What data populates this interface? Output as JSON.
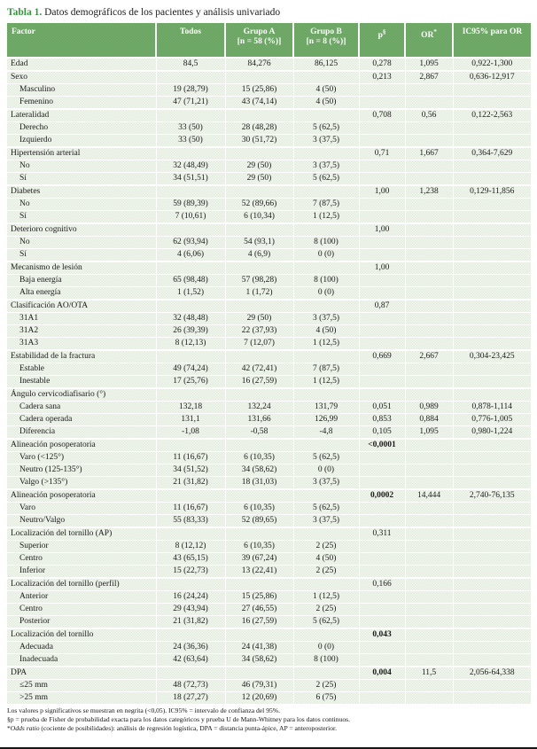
{
  "title": {
    "prefix": "Tabla 1.",
    "text": " Datos demográficos de los pacientes y análisis univariado"
  },
  "columns": {
    "factor": "Factor",
    "todos": "Todos",
    "grupo_a_line1": "Grupo A",
    "grupo_a_line2": "[n = 58 (%)]",
    "grupo_b_line1": "Grupo B",
    "grupo_b_line2": "[n = 8 (%)]",
    "p": "p",
    "p_sup": "§",
    "or": "OR",
    "or_sup": "*",
    "ic": "IC95% para OR"
  },
  "colors": {
    "header_green": "#6CA765",
    "title_green": "#35953b",
    "band_light": "#e2ebdd"
  },
  "rows": [
    {
      "f": "Edad",
      "i": 0,
      "t": "84,5",
      "a": "84,276",
      "b": "86,125",
      "p": "0,278",
      "or": "1,095",
      "ic": "0,922-1,300"
    },
    {
      "f": "Sexo",
      "i": 0,
      "p": "0,213",
      "or": "2,867",
      "ic": "0,636-12,917"
    },
    {
      "f": "Masculino",
      "i": 1,
      "t": "19 (28,79)",
      "a": "15 (25,86)",
      "b": "4 (50)"
    },
    {
      "f": "Femenino",
      "i": 1,
      "t": "47 (71,21)",
      "a": "43 (74,14)",
      "b": "4 (50)"
    },
    {
      "f": "Lateralidad",
      "i": 0,
      "p": "0,708",
      "or": "0,56",
      "ic": "0,122-2,563"
    },
    {
      "f": "Derecho",
      "i": 1,
      "t": "33 (50)",
      "a": "28 (48,28)",
      "b": "5 (62,5)"
    },
    {
      "f": "Izquierdo",
      "i": 1,
      "t": "33 (50)",
      "a": "30 (51,72)",
      "b": "3 (37,5)"
    },
    {
      "f": "Hipertensión arterial",
      "i": 0,
      "p": "0,71",
      "or": "1,667",
      "ic": "0,364-7,629"
    },
    {
      "f": "No",
      "i": 1,
      "t": "32 (48,49)",
      "a": "29 (50)",
      "b": "3 (37,5)"
    },
    {
      "f": "Sí",
      "i": 1,
      "t": "34 (51,51)",
      "a": "29 (50)",
      "b": "5 (62,5)"
    },
    {
      "f": "Diabetes",
      "i": 0,
      "p": "1,00",
      "or": "1,238",
      "ic": "0,129-11,856"
    },
    {
      "f": "No",
      "i": 1,
      "t": "59 (89,39)",
      "a": "52 (89,66)",
      "b": "7 (87,5)"
    },
    {
      "f": "Sí",
      "i": 1,
      "t": "7 (10,61)",
      "a": "6 (10,34)",
      "b": "1 (12,5)"
    },
    {
      "f": "Deterioro cognitivo",
      "i": 0,
      "p": "1,00"
    },
    {
      "f": "No",
      "i": 1,
      "t": "62 (93,94)",
      "a": "54 (93,1)",
      "b": "8 (100)"
    },
    {
      "f": "Sí",
      "i": 1,
      "t": "4 (6,06)",
      "a": "4 (6,9)",
      "b": "0 (0)"
    },
    {
      "f": "Mecanismo de lesión",
      "i": 0,
      "p": "1,00"
    },
    {
      "f": "Baja energía",
      "i": 1,
      "t": "65 (98,48)",
      "a": "57 (98,28)",
      "b": "8 (100)"
    },
    {
      "f": "Alta energía",
      "i": 1,
      "t": "1 (1,52)",
      "a": "1 (1,72)",
      "b": "0 (0)"
    },
    {
      "f": "Clasificación AO/OTA",
      "i": 0,
      "p": "0,87"
    },
    {
      "f": "31A1",
      "i": 1,
      "t": "32 (48,48)",
      "a": "29 (50)",
      "b": "3 (37,5)"
    },
    {
      "f": "31A2",
      "i": 1,
      "t": "26 (39,39)",
      "a": "22 (37,93)",
      "b": "4 (50)"
    },
    {
      "f": "31A3",
      "i": 1,
      "t": "8 (12,13)",
      "a": "7 (12,07)",
      "b": "1 (12,5)"
    },
    {
      "f": "Estabilidad de la fractura",
      "i": 0,
      "p": "0,669",
      "or": "2,667",
      "ic": "0,304-23,425"
    },
    {
      "f": "Estable",
      "i": 1,
      "t": "49 (74,24)",
      "a": "42 (72,41)",
      "b": "7 (87,5)"
    },
    {
      "f": "Inestable",
      "i": 1,
      "t": "17 (25,76)",
      "a": "16 (27,59)",
      "b": "1 (12,5)"
    },
    {
      "f": "Ángulo cervicodiafisario (°)",
      "i": 0
    },
    {
      "f": "Cadera sana",
      "i": 1,
      "t": "132,18",
      "a": "132,24",
      "b": "131,79",
      "p": "0,051",
      "or": "0,989",
      "ic": "0,878-1,114"
    },
    {
      "f": "Cadera operada",
      "i": 1,
      "t": "131,1",
      "a": "131,66",
      "b": "126,99",
      "p": "0,853",
      "or": "0,884",
      "ic": "0,776-1,005"
    },
    {
      "f": "Diferencia",
      "i": 1,
      "t": "-1,08",
      "a": "-0,58",
      "b": "-4,8",
      "p": "0,105",
      "or": "1,095",
      "ic": "0,980-1,224"
    },
    {
      "f": "Alineación posoperatoria",
      "i": 0,
      "p": "<0,0001",
      "bp": 1
    },
    {
      "f": "Varo (<125°)",
      "i": 1,
      "t": "11 (16,67)",
      "a": "6 (10,35)",
      "b": "5 (62,5)"
    },
    {
      "f": "Neutro (125-135°)",
      "i": 1,
      "t": "34 (51,52)",
      "a": "34 (58,62)",
      "b": "0 (0)"
    },
    {
      "f": "Valgo (>135°)",
      "i": 1,
      "t": "21 (31,82)",
      "a": "18 (31,03)",
      "b": "3 (37,5)"
    },
    {
      "f": "Alineación posoperatoria",
      "i": 0,
      "p": "0,0002",
      "bp": 1,
      "or": "14,444",
      "ic": "2,740-76,135"
    },
    {
      "f": "Varo",
      "i": 1,
      "t": "11 (16,67)",
      "a": "6 (10,35)",
      "b": "5 (62,5)"
    },
    {
      "f": "Neutro/Valgo",
      "i": 1,
      "t": "55 (83,33)",
      "a": "52 (89,65)",
      "b": "3 (37,5)"
    },
    {
      "f": "Localización del tornillo (AP)",
      "i": 0,
      "p": "0,311"
    },
    {
      "f": "Superior",
      "i": 1,
      "t": "8 (12,12)",
      "a": "6 (10,35)",
      "b": "2 (25)"
    },
    {
      "f": "Centro",
      "i": 1,
      "t": "43 (65,15)",
      "a": "39 (67,24)",
      "b": "4 (50)"
    },
    {
      "f": "Inferior",
      "i": 1,
      "t": "15 (22,73)",
      "a": "13 (22,41)",
      "b": "2 (25)"
    },
    {
      "f": "Localización del tornillo (perfil)",
      "i": 0,
      "p": "0,166"
    },
    {
      "f": "Anterior",
      "i": 1,
      "t": "16 (24,24)",
      "a": "15 (25,86)",
      "b": "1 (12,5)"
    },
    {
      "f": "Centro",
      "i": 1,
      "t": "29 (43,94)",
      "a": "27 (46,55)",
      "b": "2 (25)"
    },
    {
      "f": "Posterior",
      "i": 1,
      "t": "21 (31,82)",
      "a": "16 (27,59)",
      "b": "5 (62,5)"
    },
    {
      "f": "Localización del tornillo",
      "i": 0,
      "p": "0,043",
      "bp": 1
    },
    {
      "f": "Adecuada",
      "i": 1,
      "t": "24 (36,36)",
      "a": "24 (41,38)",
      "b": "0 (0)"
    },
    {
      "f": "Inadecuada",
      "i": 1,
      "t": "42 (63,64)",
      "a": "34 (58,62)",
      "b": "8 (100)"
    },
    {
      "f": "DPA",
      "i": 0,
      "p": "0,004",
      "bp": 1,
      "or": "11,5",
      "ic": "2,056-64,338"
    },
    {
      "f": "≤25 mm",
      "i": 1,
      "t": "48 (72,73)",
      "a": "46 (79,31)",
      "b": "2 (25)"
    },
    {
      "f": ">25 mm",
      "i": 1,
      "t": "18 (27,27)",
      "a": "12 (20,69)",
      "b": "6 (75)"
    }
  ],
  "footnotes": [
    "Los valores p significativos se muestran en negrita (<0,05). IC95% = intervalo de confianza del 95%.",
    "§p = prueba de Fisher de probabilidad exacta para los datos categóricos y prueba U de Mann-Whitney para los datos continuos."
  ],
  "footnote3": {
    "pre": "*",
    "italic": "Odds ratio",
    "rest": " (cociente de posibilidades): análisis de regresión logística, DPA = distancia punta-ápice, AP = anteroposterior."
  }
}
